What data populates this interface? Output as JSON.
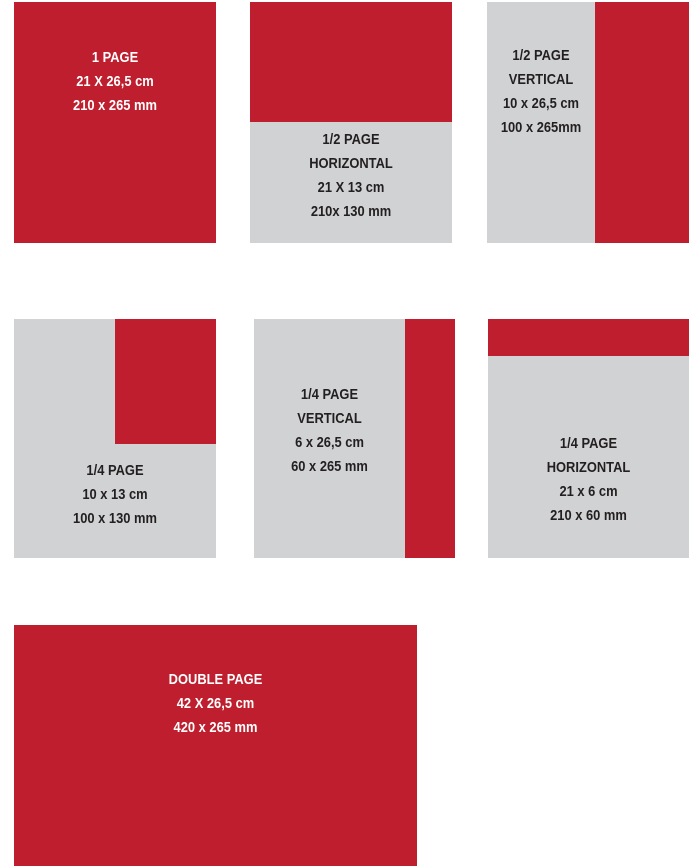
{
  "colors": {
    "accent": "#be1e2d",
    "panel": "#d1d2d4",
    "text_dark": "#231f20",
    "text_light": "#ffffff"
  },
  "formats": {
    "full_page": {
      "lines": [
        "1 PAGE",
        "21 X 26,5 cm",
        "210 x 265 mm"
      ]
    },
    "half_horizontal": {
      "lines": [
        "1/2 PAGE",
        "HORIZONTAL",
        "21 X 13 cm",
        "210x 130 mm"
      ]
    },
    "half_vertical": {
      "lines": [
        "1/2 PAGE",
        "VERTICAL",
        "10 x 26,5 cm",
        "100 x 265mm"
      ]
    },
    "quarter": {
      "lines": [
        "1/4 PAGE",
        "10 x 13 cm",
        "100 x 130 mm"
      ]
    },
    "quarter_vertical": {
      "lines": [
        "1/4 PAGE",
        "VERTICAL",
        "6 x 26,5 cm",
        "60 x 265 mm"
      ]
    },
    "quarter_horizontal": {
      "lines": [
        "1/4 PAGE",
        "HORIZONTAL",
        "21 x 6 cm",
        "210 x 60 mm"
      ]
    },
    "double_page": {
      "lines": [
        "DOUBLE PAGE",
        "42 X 26,5 cm",
        "420 x 265 mm"
      ]
    }
  }
}
